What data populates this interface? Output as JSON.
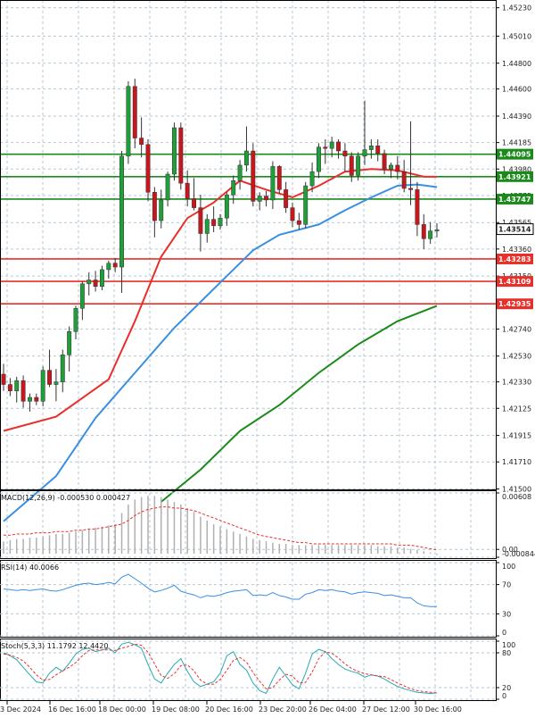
{
  "chart_data": {
    "type": "candlestick",
    "instrument_hint": "",
    "x_labels": [
      "3 Dec 2024",
      "16 Dec 16:00",
      "18 Dec 00:00",
      "19 Dec 08:00",
      "20 Dec 16:00",
      "23 Dec 20:00",
      "26 Dec 04:00",
      "27 Dec 12:00",
      "30 Dec 16:00"
    ],
    "price_ticks": [
      "1.45230",
      "1.45010",
      "1.44800",
      "1.44600",
      "1.44390",
      "1.44185",
      "1.43980",
      "1.43775",
      "1.43565",
      "1.43360",
      "1.43150",
      "1.42740",
      "1.42530",
      "1.42330",
      "1.42125",
      "1.41915",
      "1.41710",
      "1.41500"
    ],
    "ylim": [
      1.4149,
      1.4529
    ],
    "candles": [
      [
        1.4239,
        1.4247,
        1.4226,
        1.4231
      ],
      [
        1.4231,
        1.4236,
        1.4222,
        1.4226
      ],
      [
        1.4226,
        1.4237,
        1.4217,
        1.4234
      ],
      [
        1.4234,
        1.4238,
        1.4213,
        1.4218
      ],
      [
        1.4218,
        1.4224,
        1.421,
        1.4221
      ],
      [
        1.4221,
        1.4224,
        1.4215,
        1.4218
      ],
      [
        1.4218,
        1.4245,
        1.4214,
        1.4242
      ],
      [
        1.4242,
        1.4258,
        1.4229,
        1.4231
      ],
      [
        1.4231,
        1.4243,
        1.4218,
        1.4233
      ],
      [
        1.4233,
        1.4258,
        1.4225,
        1.4254
      ],
      [
        1.4254,
        1.4276,
        1.4241,
        1.4272
      ],
      [
        1.4272,
        1.4292,
        1.4266,
        1.429
      ],
      [
        1.429,
        1.4311,
        1.4281,
        1.4309
      ],
      [
        1.4309,
        1.4318,
        1.43,
        1.4312
      ],
      [
        1.4312,
        1.4319,
        1.4303,
        1.4307
      ],
      [
        1.4307,
        1.4323,
        1.4304,
        1.432
      ],
      [
        1.432,
        1.4327,
        1.4313,
        1.4325
      ],
      [
        1.4325,
        1.4329,
        1.4318,
        1.4322
      ],
      [
        1.4322,
        1.4412,
        1.4302,
        1.4408
      ],
      [
        1.4408,
        1.4466,
        1.4402,
        1.4462
      ],
      [
        1.4462,
        1.4468,
        1.4414,
        1.4422
      ],
      [
        1.4422,
        1.4438,
        1.4407,
        1.4417
      ],
      [
        1.4417,
        1.4421,
        1.4373,
        1.438
      ],
      [
        1.438,
        1.4384,
        1.4345,
        1.4358
      ],
      [
        1.4358,
        1.4382,
        1.4352,
        1.4374
      ],
      [
        1.4374,
        1.4396,
        1.4369,
        1.4394
      ],
      [
        1.4394,
        1.4434,
        1.4389,
        1.443
      ],
      [
        1.443,
        1.4434,
        1.4382,
        1.4387
      ],
      [
        1.4387,
        1.4397,
        1.4369,
        1.4375
      ],
      [
        1.4375,
        1.4391,
        1.4366,
        1.4368
      ],
      [
        1.4368,
        1.4378,
        1.4334,
        1.4348
      ],
      [
        1.4348,
        1.4363,
        1.4341,
        1.4359
      ],
      [
        1.4359,
        1.4369,
        1.4349,
        1.4354
      ],
      [
        1.4354,
        1.4363,
        1.4351,
        1.436
      ],
      [
        1.436,
        1.438,
        1.4354,
        1.4378
      ],
      [
        1.4378,
        1.4393,
        1.4371,
        1.4389
      ],
      [
        1.4389,
        1.4405,
        1.4382,
        1.4401
      ],
      [
        1.4401,
        1.4431,
        1.4396,
        1.4412
      ],
      [
        1.4412,
        1.4418,
        1.4369,
        1.4373
      ],
      [
        1.4373,
        1.438,
        1.4366,
        1.4377
      ],
      [
        1.4377,
        1.4381,
        1.4369,
        1.4374
      ],
      [
        1.4374,
        1.4404,
        1.4367,
        1.44
      ],
      [
        1.44,
        1.4401,
        1.4379,
        1.4382
      ],
      [
        1.4382,
        1.4388,
        1.4364,
        1.4368
      ],
      [
        1.4368,
        1.4372,
        1.4353,
        1.4358
      ],
      [
        1.4358,
        1.4364,
        1.4351,
        1.4355
      ],
      [
        1.4355,
        1.4388,
        1.4352,
        1.4385
      ],
      [
        1.4385,
        1.4403,
        1.438,
        1.4396
      ],
      [
        1.4396,
        1.4418,
        1.4391,
        1.4415
      ],
      [
        1.4415,
        1.4421,
        1.4402,
        1.4414
      ],
      [
        1.4414,
        1.4423,
        1.4407,
        1.4419
      ],
      [
        1.4419,
        1.4421,
        1.4406,
        1.4412
      ],
      [
        1.4412,
        1.4418,
        1.4396,
        1.4408
      ],
      [
        1.4408,
        1.4411,
        1.4388,
        1.4393
      ],
      [
        1.4393,
        1.4411,
        1.4389,
        1.4408
      ],
      [
        1.4408,
        1.4451,
        1.4401,
        1.4413
      ],
      [
        1.4413,
        1.4421,
        1.4406,
        1.4416
      ],
      [
        1.4416,
        1.4421,
        1.4404,
        1.441
      ],
      [
        1.441,
        1.4413,
        1.4394,
        1.4398
      ],
      [
        1.4398,
        1.4403,
        1.4391,
        1.4401
      ],
      [
        1.4401,
        1.4408,
        1.439,
        1.4396
      ],
      [
        1.4396,
        1.4405,
        1.438,
        1.4383
      ],
      [
        1.4383,
        1.4435,
        1.437,
        1.4382
      ],
      [
        1.4382,
        1.4388,
        1.4346,
        1.4355
      ],
      [
        1.4355,
        1.4363,
        1.4336,
        1.4344
      ],
      [
        1.4344,
        1.4357,
        1.434,
        1.435
      ],
      [
        1.435,
        1.4356,
        1.4345,
        1.4351
      ]
    ],
    "overlays": [
      {
        "color": "#e8302a",
        "type": "moving-average",
        "points": [
          [
            0,
            1.4195
          ],
          [
            8,
            1.4206
          ],
          [
            16,
            1.4235
          ],
          [
            20,
            1.428
          ],
          [
            24,
            1.433
          ],
          [
            28,
            1.436
          ],
          [
            32,
            1.4372
          ],
          [
            36,
            1.4389
          ],
          [
            40,
            1.4382
          ],
          [
            44,
            1.4376
          ],
          [
            48,
            1.4385
          ],
          [
            52,
            1.4396
          ],
          [
            56,
            1.4398
          ],
          [
            60,
            1.4397
          ],
          [
            64,
            1.4392
          ],
          [
            66,
            1.4392
          ]
        ]
      },
      {
        "color": "#3a8fe0",
        "type": "moving-average",
        "points": [
          [
            0,
            1.4125
          ],
          [
            8,
            1.416
          ],
          [
            14,
            1.4205
          ],
          [
            20,
            1.424
          ],
          [
            26,
            1.4275
          ],
          [
            32,
            1.4305
          ],
          [
            38,
            1.4335
          ],
          [
            42,
            1.4347
          ],
          [
            48,
            1.4355
          ],
          [
            52,
            1.4366
          ],
          [
            56,
            1.4376
          ],
          [
            60,
            1.4385
          ],
          [
            63,
            1.4386
          ],
          [
            66,
            1.4384
          ]
        ]
      },
      {
        "color": "#1a8a1a",
        "type": "moving-average",
        "points": [
          [
            24,
            1.414
          ],
          [
            30,
            1.4165
          ],
          [
            36,
            1.4195
          ],
          [
            42,
            1.4215
          ],
          [
            48,
            1.424
          ],
          [
            54,
            1.4262
          ],
          [
            60,
            1.428
          ],
          [
            66,
            1.4292
          ]
        ]
      }
    ],
    "levels": [
      {
        "value": 1.44095,
        "label": "1.44095",
        "color": "#1a8a1a"
      },
      {
        "value": 1.43921,
        "label": "1.43921",
        "color": "#1a8a1a"
      },
      {
        "value": 1.43747,
        "label": "1.43747",
        "color": "#1a8a1a"
      },
      {
        "value": 1.43283,
        "label": "1.43283",
        "color": "#e8302a"
      },
      {
        "value": 1.43109,
        "label": "1.43109",
        "color": "#e8302a"
      },
      {
        "value": 1.42935,
        "label": "1.42935",
        "color": "#e8302a"
      }
    ],
    "current_price": {
      "value": 1.43514,
      "label": "1.43514"
    },
    "macd": {
      "label": "MACD(12,26,9) -0.000530 0.000427",
      "ticks": [
        "0.00608",
        "0.00",
        "-0.000844"
      ],
      "ylim": [
        -0.000844,
        0.00608
      ],
      "histogram": [
        0.001,
        0.0011,
        0.0012,
        0.0012,
        0.0013,
        0.0013,
        0.0014,
        0.0015,
        0.0016,
        0.0016,
        0.0017,
        0.0018,
        0.0019,
        0.002,
        0.0021,
        0.0022,
        0.0023,
        0.0024,
        0.0033,
        0.004,
        0.0044,
        0.0046,
        0.0047,
        0.0047,
        0.0046,
        0.0044,
        0.0042,
        0.004,
        0.0037,
        0.0034,
        0.003,
        0.0027,
        0.0024,
        0.0022,
        0.002,
        0.0018,
        0.0016,
        0.0014,
        0.0012,
        0.0011,
        0.001,
        0.0009,
        0.0008,
        0.0008,
        0.0007,
        0.0007,
        0.0007,
        0.0007,
        0.0007,
        0.0007,
        0.0007,
        0.0007,
        0.0007,
        0.0007,
        0.0007,
        0.0007,
        0.0007,
        0.0006,
        0.0006,
        0.0006,
        0.0005,
        0.0005,
        0.0004,
        0.0003,
        0.0002,
        0.0001,
        -0.0001
      ],
      "signal": [
        0.0015,
        0.0015,
        0.0016,
        0.0016,
        0.0016,
        0.0017,
        0.0017,
        0.0017,
        0.0018,
        0.0018,
        0.0018,
        0.0019,
        0.0019,
        0.002,
        0.002,
        0.0021,
        0.0022,
        0.0023,
        0.0024,
        0.0027,
        0.0031,
        0.0034,
        0.0036,
        0.0037,
        0.0038,
        0.0038,
        0.0037,
        0.0037,
        0.0036,
        0.0035,
        0.0033,
        0.0031,
        0.0029,
        0.0027,
        0.0025,
        0.0023,
        0.0021,
        0.0019,
        0.0017,
        0.0015,
        0.0014,
        0.0013,
        0.0012,
        0.0011,
        0.001,
        0.0009,
        0.0009,
        0.0008,
        0.0008,
        0.0008,
        0.0008,
        0.0008,
        0.0008,
        0.0008,
        0.0008,
        0.0008,
        0.0008,
        0.0008,
        0.0008,
        0.0008,
        0.0007,
        0.0007,
        0.0007,
        0.0006,
        0.0005,
        0.0004,
        0.0003
      ]
    },
    "rsi": {
      "label": "RSI(14) 40.0066",
      "ticks": [
        "100",
        "70",
        "30",
        "0"
      ],
      "ylim": [
        0,
        100
      ],
      "values": [
        64,
        63,
        62,
        63,
        62,
        63,
        64,
        62,
        61,
        63,
        66,
        69,
        71,
        72,
        70,
        71,
        73,
        71,
        80,
        84,
        78,
        72,
        65,
        60,
        62,
        65,
        69,
        61,
        58,
        56,
        52,
        55,
        54,
        56,
        59,
        61,
        62,
        63,
        55,
        56,
        55,
        59,
        55,
        53,
        50,
        50,
        57,
        59,
        63,
        62,
        63,
        61,
        60,
        57,
        59,
        60,
        59,
        58,
        55,
        56,
        54,
        52,
        52,
        45,
        41,
        40,
        40
      ]
    },
    "stoch": {
      "label": "Stoch(5,3,3) 11.1792 12.4420",
      "ticks": [
        "100",
        "80",
        "20",
        "0"
      ],
      "ylim": [
        0,
        100
      ],
      "k": [
        80,
        75,
        68,
        55,
        42,
        30,
        28,
        45,
        55,
        48,
        62,
        78,
        86,
        88,
        82,
        85,
        88,
        80,
        95,
        98,
        94,
        88,
        60,
        35,
        28,
        45,
        60,
        70,
        48,
        30,
        22,
        26,
        30,
        45,
        75,
        82,
        60,
        50,
        28,
        15,
        10,
        35,
        55,
        40,
        25,
        18,
        45,
        78,
        86,
        82,
        70,
        60,
        52,
        48,
        45,
        38,
        42,
        40,
        35,
        28,
        22,
        18,
        15,
        12,
        11,
        10,
        11
      ],
      "d": [
        78,
        76,
        72,
        66,
        55,
        42,
        33,
        34,
        42,
        49,
        55,
        63,
        75,
        84,
        85,
        85,
        85,
        84,
        88,
        91,
        95,
        93,
        81,
        61,
        41,
        36,
        44,
        58,
        59,
        49,
        33,
        26,
        26,
        34,
        50,
        67,
        72,
        64,
        46,
        31,
        18,
        20,
        33,
        43,
        40,
        28,
        29,
        47,
        70,
        82,
        79,
        71,
        61,
        53,
        48,
        44,
        42,
        40,
        39,
        34,
        28,
        23,
        18,
        15,
        13,
        12,
        11
      ]
    }
  }
}
